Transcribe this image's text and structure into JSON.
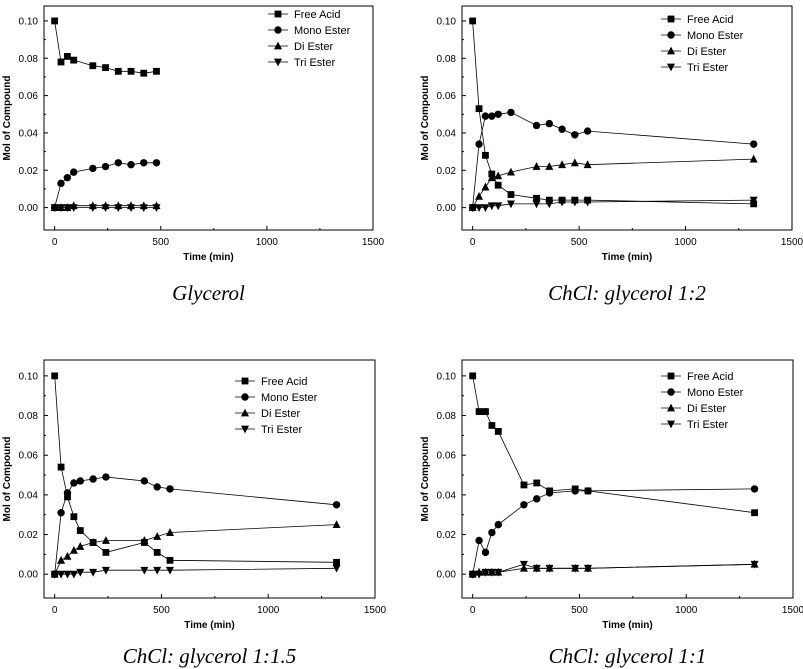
{
  "chart_data": [
    {
      "type": "line",
      "title": "Glycerol",
      "xlabel": "Time (min)",
      "ylabel": "Mol of Compound",
      "xlim": [
        -50,
        1500
      ],
      "ylim": [
        -0.012,
        0.108
      ],
      "xticks": [
        0,
        500,
        1000,
        1500
      ],
      "yticks": [
        0.0,
        0.02,
        0.04,
        0.06,
        0.08,
        0.1
      ],
      "xtick_labels": [
        "0",
        "500",
        "1000",
        "1500"
      ],
      "ytick_labels": [
        "0.00",
        "0.02",
        "0.04",
        "0.06",
        "0.08",
        "0.10"
      ],
      "legend_position": "top-right",
      "series": [
        {
          "name": "Free Acid",
          "marker": "square",
          "x": [
            0,
            30,
            60,
            90,
            180,
            240,
            300,
            360,
            420,
            480
          ],
          "y": [
            0.1,
            0.078,
            0.081,
            0.079,
            0.076,
            0.075,
            0.073,
            0.073,
            0.072,
            0.073
          ]
        },
        {
          "name": "Mono Ester",
          "marker": "circle",
          "x": [
            0,
            30,
            60,
            90,
            180,
            240,
            300,
            360,
            420,
            480
          ],
          "y": [
            0.0,
            0.013,
            0.016,
            0.019,
            0.021,
            0.022,
            0.024,
            0.023,
            0.024,
            0.024
          ]
        },
        {
          "name": "Di Ester",
          "marker": "triangle-up",
          "x": [
            0,
            30,
            60,
            90,
            180,
            240,
            300,
            360,
            420,
            480
          ],
          "y": [
            0.0,
            0.0,
            0.0,
            0.001,
            0.001,
            0.001,
            0.001,
            0.001,
            0.001,
            0.001
          ]
        },
        {
          "name": "Tri Ester",
          "marker": "triangle-down",
          "x": [
            0,
            30,
            60,
            90,
            180,
            240,
            300,
            360,
            420,
            480
          ],
          "y": [
            0.0,
            0.0,
            0.0,
            0.0,
            0.0,
            0.0,
            0.0,
            0.0,
            0.0,
            0.0
          ]
        }
      ]
    },
    {
      "type": "line",
      "title": "ChCl: glycerol 1:2",
      "xlabel": "Time (min)",
      "ylabel": "Mol of Compound",
      "xlim": [
        -50,
        1500
      ],
      "ylim": [
        -0.012,
        0.108
      ],
      "xticks": [
        0,
        500,
        1000,
        1500
      ],
      "yticks": [
        0.0,
        0.02,
        0.04,
        0.06,
        0.08,
        0.1
      ],
      "xtick_labels": [
        "0",
        "500",
        "1000",
        "1500"
      ],
      "ytick_labels": [
        "0.00",
        "0.02",
        "0.04",
        "0.06",
        "0.08",
        "0.10"
      ],
      "legend_position": "top-right",
      "series": [
        {
          "name": "Free Acid",
          "marker": "square",
          "x": [
            0,
            30,
            60,
            90,
            120,
            180,
            300,
            360,
            420,
            480,
            540,
            1320
          ],
          "y": [
            0.1,
            0.053,
            0.028,
            0.018,
            0.012,
            0.007,
            0.005,
            0.004,
            0.004,
            0.004,
            0.004,
            0.002
          ]
        },
        {
          "name": "Mono Ester",
          "marker": "circle",
          "x": [
            0,
            30,
            60,
            90,
            120,
            180,
            300,
            360,
            420,
            480,
            540,
            1320
          ],
          "y": [
            0.0,
            0.034,
            0.049,
            0.049,
            0.05,
            0.051,
            0.044,
            0.045,
            0.042,
            0.039,
            0.041,
            0.034
          ]
        },
        {
          "name": "Di Ester",
          "marker": "triangle-up",
          "x": [
            0,
            30,
            60,
            90,
            120,
            180,
            300,
            360,
            420,
            480,
            540,
            1320
          ],
          "y": [
            0.0,
            0.006,
            0.011,
            0.016,
            0.017,
            0.019,
            0.022,
            0.022,
            0.023,
            0.024,
            0.023,
            0.026
          ]
        },
        {
          "name": "Tri Ester",
          "marker": "triangle-down",
          "x": [
            0,
            30,
            60,
            90,
            120,
            180,
            300,
            360,
            420,
            480,
            540,
            1320
          ],
          "y": [
            0.0,
            0.0,
            0.0,
            0.001,
            0.001,
            0.002,
            0.002,
            0.002,
            0.003,
            0.003,
            0.003,
            0.004
          ]
        }
      ]
    },
    {
      "type": "line",
      "title": "ChCl: glycerol 1:1.5",
      "xlabel": "Time (min)",
      "ylabel": "Mol of Compound",
      "xlim": [
        -50,
        1500
      ],
      "ylim": [
        -0.012,
        0.108
      ],
      "xticks": [
        0,
        500,
        1000,
        1500
      ],
      "yticks": [
        0.0,
        0.02,
        0.04,
        0.06,
        0.08,
        0.1
      ],
      "xtick_labels": [
        "0",
        "500",
        "1000",
        "1500"
      ],
      "ytick_labels": [
        "0.00",
        "0.02",
        "0.04",
        "0.06",
        "0.08",
        "0.10"
      ],
      "legend_position": "top-right",
      "series": [
        {
          "name": "Free Acid",
          "marker": "square",
          "x": [
            0,
            30,
            60,
            90,
            120,
            180,
            240,
            420,
            480,
            540,
            1320
          ],
          "y": [
            0.1,
            0.054,
            0.039,
            0.029,
            0.022,
            0.016,
            0.011,
            0.016,
            0.011,
            0.007,
            0.006
          ]
        },
        {
          "name": "Mono Ester",
          "marker": "circle",
          "x": [
            0,
            30,
            60,
            90,
            120,
            180,
            240,
            420,
            480,
            540,
            1320
          ],
          "y": [
            0.0,
            0.031,
            0.041,
            0.046,
            0.047,
            0.048,
            0.049,
            0.047,
            0.044,
            0.043,
            0.035
          ]
        },
        {
          "name": "Di Ester",
          "marker": "triangle-up",
          "x": [
            0,
            30,
            60,
            90,
            120,
            180,
            240,
            420,
            480,
            540,
            1320
          ],
          "y": [
            0.0,
            0.007,
            0.009,
            0.012,
            0.014,
            0.016,
            0.017,
            0.017,
            0.019,
            0.021,
            0.025
          ]
        },
        {
          "name": "Tri Ester",
          "marker": "triangle-down",
          "x": [
            0,
            30,
            60,
            90,
            120,
            180,
            240,
            420,
            480,
            540,
            1320
          ],
          "y": [
            0.0,
            0.0,
            0.0,
            0.0,
            0.001,
            0.001,
            0.002,
            0.002,
            0.002,
            0.002,
            0.003
          ]
        }
      ]
    },
    {
      "type": "line",
      "title": "ChCl: glycerol 1:1",
      "xlabel": "Time (min)",
      "ylabel": "Mol of Compound",
      "xlim": [
        -50,
        1500
      ],
      "ylim": [
        -0.012,
        0.108
      ],
      "xticks": [
        0,
        500,
        1000,
        1500
      ],
      "yticks": [
        0.0,
        0.02,
        0.04,
        0.06,
        0.08,
        0.1
      ],
      "xtick_labels": [
        "0",
        "500",
        "1000",
        "1500"
      ],
      "ytick_labels": [
        "0.00",
        "0.02",
        "0.04",
        "0.06",
        "0.08",
        "0.10"
      ],
      "legend_position": "top-right",
      "series": [
        {
          "name": "Free Acid",
          "marker": "square",
          "x": [
            0,
            30,
            60,
            90,
            120,
            240,
            300,
            360,
            480,
            540,
            1320
          ],
          "y": [
            0.1,
            0.082,
            0.082,
            0.075,
            0.072,
            0.045,
            0.046,
            0.042,
            0.043,
            0.042,
            0.031
          ]
        },
        {
          "name": "Mono Ester",
          "marker": "circle",
          "x": [
            0,
            30,
            60,
            90,
            120,
            240,
            300,
            360,
            480,
            540,
            1320
          ],
          "y": [
            0.0,
            0.017,
            0.011,
            0.021,
            0.025,
            0.035,
            0.038,
            0.041,
            0.042,
            0.042,
            0.043
          ]
        },
        {
          "name": "Di Ester",
          "marker": "triangle-up",
          "x": [
            0,
            30,
            60,
            90,
            120,
            240,
            300,
            360,
            480,
            540,
            1320
          ],
          "y": [
            0.0,
            0.001,
            0.001,
            0.001,
            0.001,
            0.003,
            0.003,
            0.003,
            0.003,
            0.003,
            0.005
          ]
        },
        {
          "name": "Tri Ester",
          "marker": "triangle-down",
          "x": [
            0,
            30,
            60,
            90,
            120,
            240,
            300,
            360,
            480,
            540,
            1320
          ],
          "y": [
            0.0,
            0.0,
            0.001,
            0.001,
            0.001,
            0.005,
            0.003,
            0.003,
            0.003,
            0.003,
            0.005
          ]
        }
      ]
    }
  ]
}
